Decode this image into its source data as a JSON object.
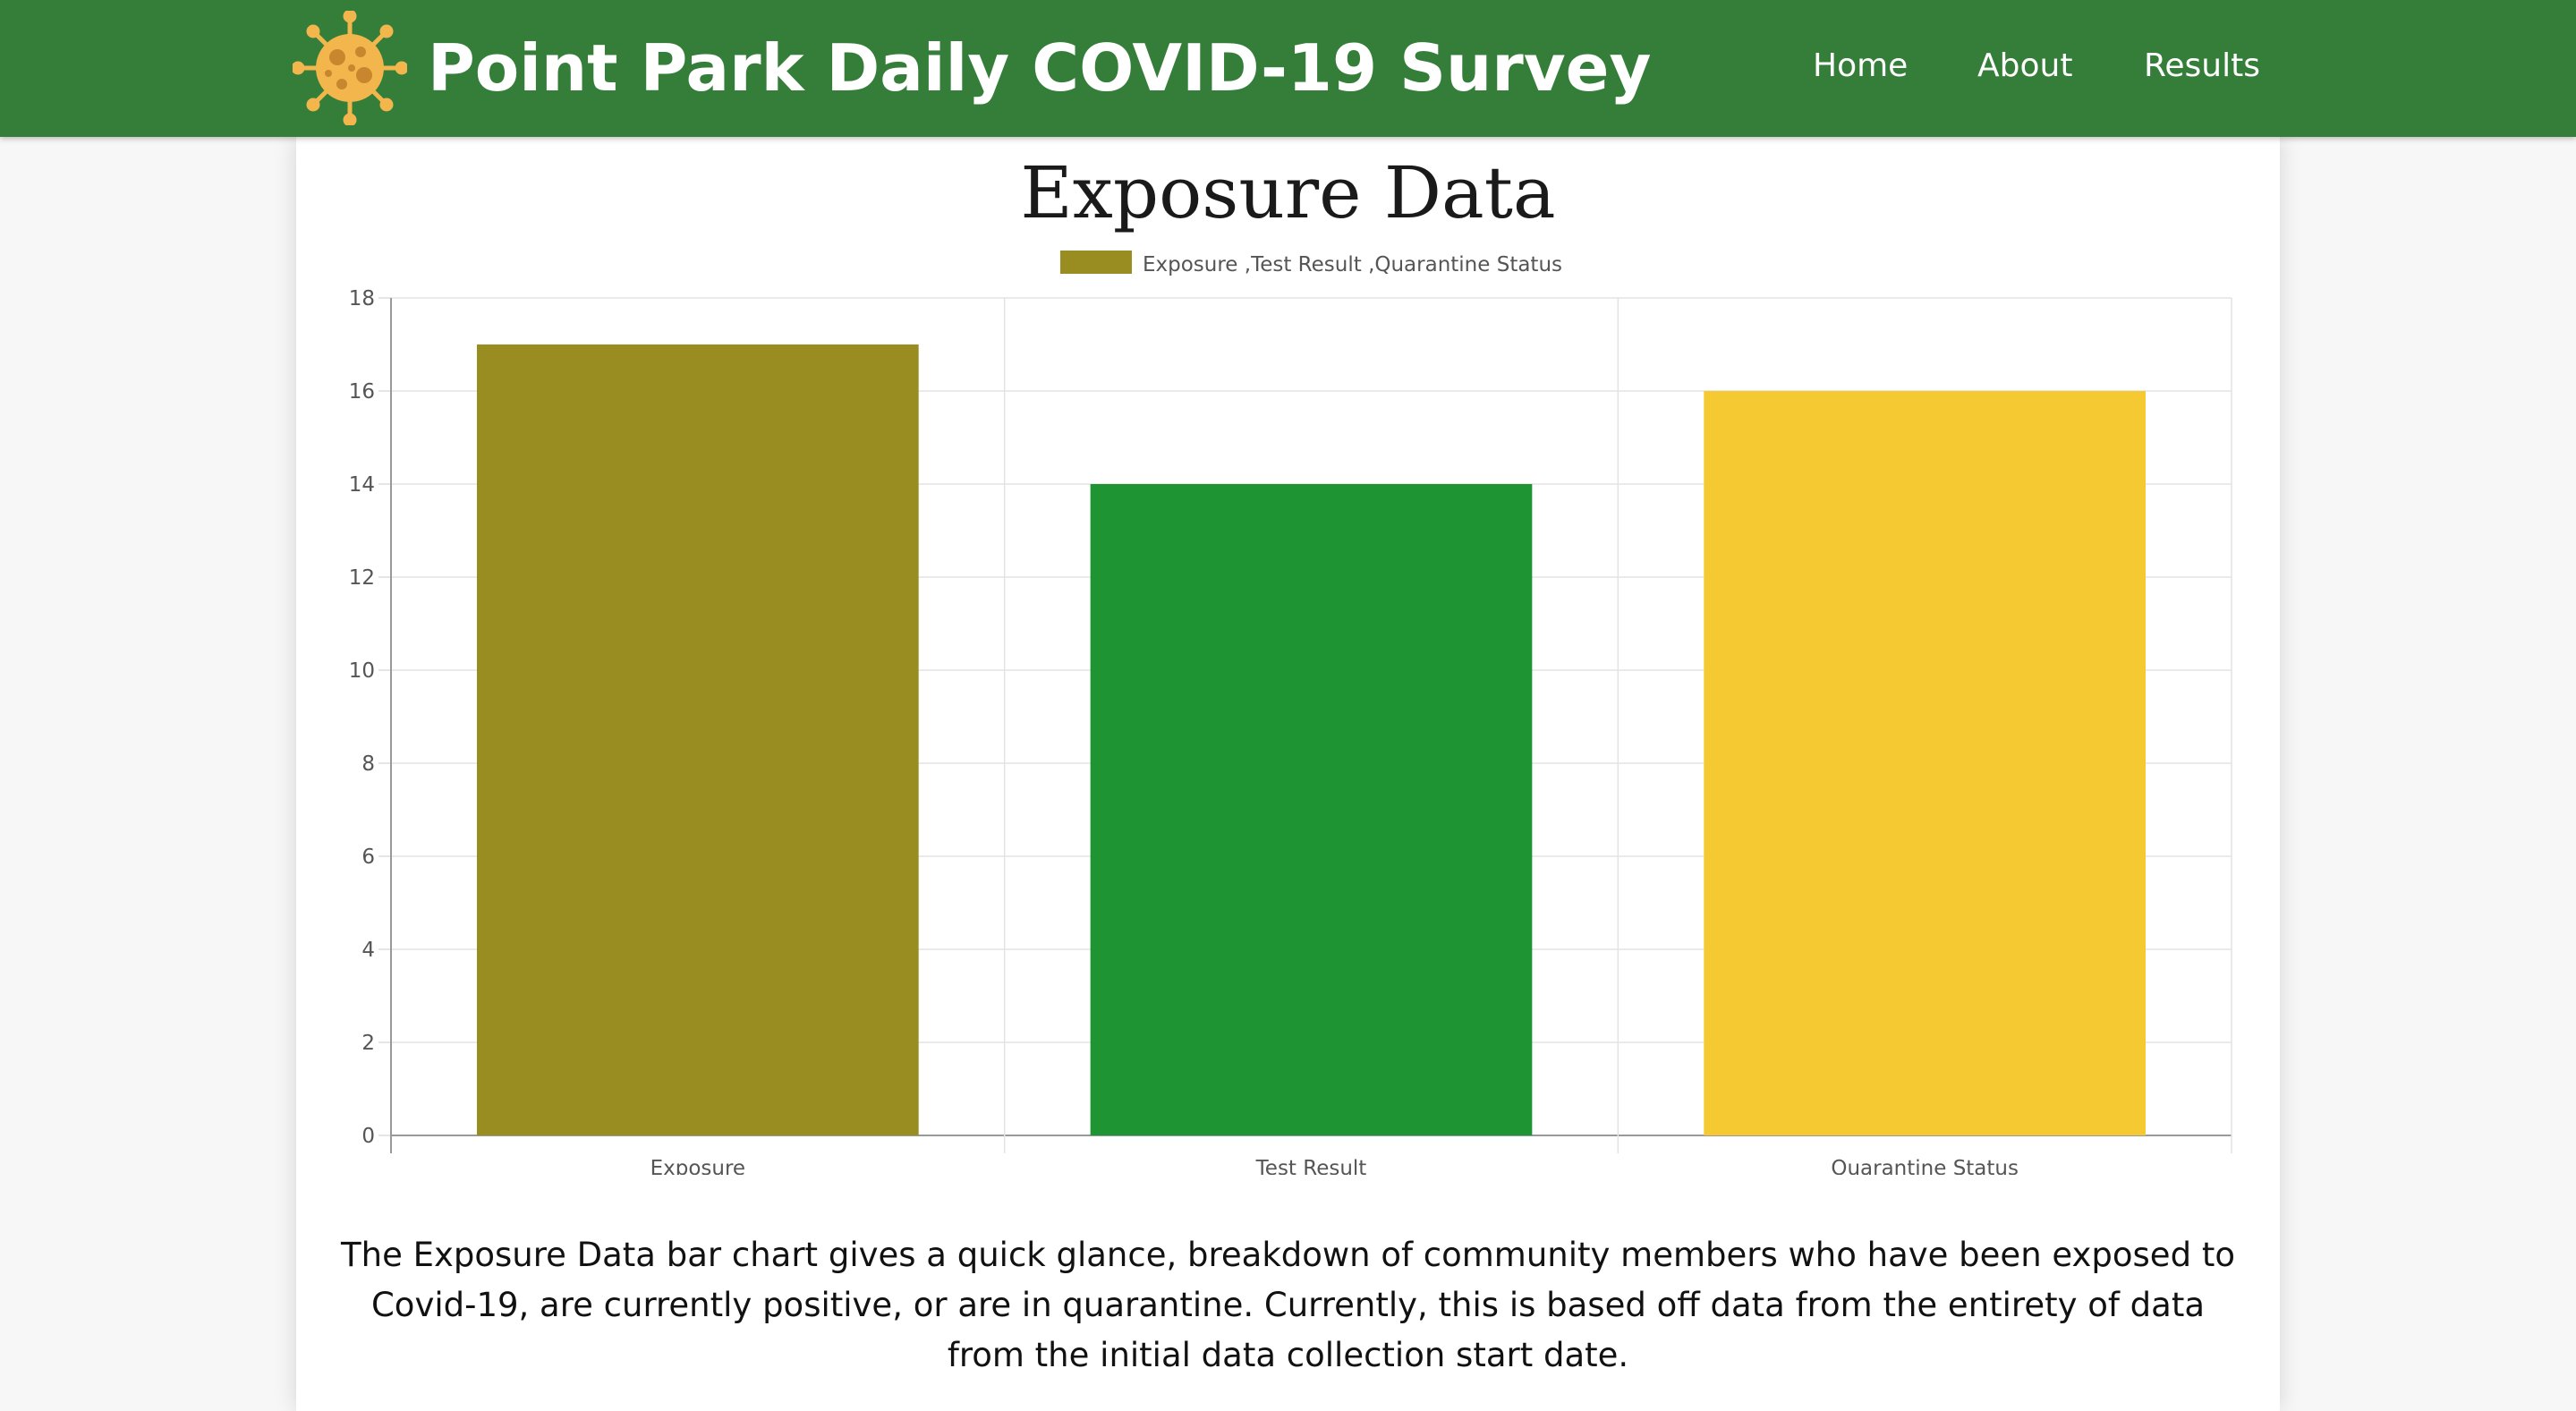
{
  "header": {
    "title": "Point Park Daily COVID-19 Survey",
    "logo_icon": "virus-icon",
    "nav": [
      {
        "label": "Home"
      },
      {
        "label": "About"
      },
      {
        "label": "Results"
      }
    ]
  },
  "main": {
    "title": "Exposure Data",
    "description": "The Exposure Data bar chart gives a quick glance, breakdown of community members who have been exposed to Covid-19, are currently positive, or are in quarantine. Currently, this is based off data from the entirety of data from the initial data collection start date."
  },
  "colors": {
    "header_bg": "#357e39",
    "exposure": "#998d22",
    "test_result": "#1e9432",
    "quarantine": "#f4c932",
    "logo": "#f2b64d"
  },
  "chart_data": {
    "type": "bar",
    "title": "",
    "legend": {
      "label": "Exposure ,Test Result ,Quarantine Status",
      "position": "top",
      "color": "#998d22"
    },
    "categories": [
      "Exposure",
      "Test Result",
      "Quarantine Status"
    ],
    "series": [
      {
        "name": "Exposure ,Test Result ,Quarantine Status",
        "values": [
          17,
          14,
          16
        ],
        "colors": [
          "#998d22",
          "#1e9432",
          "#f4c932"
        ]
      }
    ],
    "yticks": [
      0,
      2,
      4,
      6,
      8,
      10,
      12,
      14,
      16,
      18
    ],
    "ylim": [
      0,
      18
    ],
    "grid": true,
    "xlabel": "",
    "ylabel": ""
  }
}
